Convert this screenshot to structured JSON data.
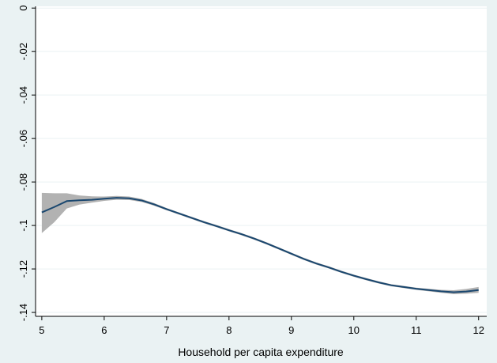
{
  "chart_data": {
    "type": "line",
    "title": "",
    "xlabel": "Household per capita expenditure",
    "ylabel": "",
    "xlim": [
      4.9,
      12.13
    ],
    "ylim": [
      -0.1418,
      0.0008
    ],
    "xticks": [
      5,
      6,
      7,
      8,
      9,
      10,
      11,
      12
    ],
    "yticks": [
      0,
      -0.02,
      -0.04,
      -0.06,
      -0.08,
      -0.1,
      -0.12,
      -0.14
    ],
    "ytick_labels": [
      "0",
      "-.02",
      "-.04",
      "-.06",
      "-.08",
      "-.1",
      "-.12",
      "-.14"
    ],
    "grid": true,
    "legend": "none",
    "colors": {
      "line": "#1a476f",
      "band": "#b2b2b2",
      "plot_bg": "#ffffff",
      "outer_bg": "#eaf2f3",
      "grid": "#eaf2f3"
    },
    "series": [
      {
        "x": [
          5.0,
          5.2,
          5.4,
          5.6,
          5.8,
          6.0,
          6.2,
          6.4,
          6.6,
          6.8,
          7.0,
          7.2,
          7.4,
          7.6,
          7.8,
          8.0,
          8.2,
          8.4,
          8.6,
          8.8,
          9.0,
          9.2,
          9.4,
          9.6,
          9.8,
          10.0,
          10.2,
          10.4,
          10.6,
          10.8,
          11.0,
          11.2,
          11.4,
          11.6,
          11.8,
          12.0
        ],
        "y": [
          -0.094,
          -0.0915,
          -0.0888,
          -0.0884,
          -0.0882,
          -0.0877,
          -0.0873,
          -0.0875,
          -0.0885,
          -0.0903,
          -0.0925,
          -0.0945,
          -0.0965,
          -0.0985,
          -0.1003,
          -0.1022,
          -0.104,
          -0.106,
          -0.1082,
          -0.1106,
          -0.113,
          -0.1154,
          -0.1175,
          -0.1193,
          -0.1213,
          -0.1231,
          -0.1247,
          -0.1262,
          -0.1275,
          -0.1283,
          -0.1291,
          -0.1297,
          -0.1303,
          -0.1307,
          -0.1304,
          -0.1297
        ],
        "lower": [
          -0.1035,
          -0.0985,
          -0.0922,
          -0.0904,
          -0.0895,
          -0.0887,
          -0.0882,
          -0.0883,
          -0.0892,
          -0.0909,
          -0.093,
          -0.095,
          -0.097,
          -0.099,
          -0.1008,
          -0.1027,
          -0.1045,
          -0.1065,
          -0.1087,
          -0.1111,
          -0.1135,
          -0.1159,
          -0.118,
          -0.1198,
          -0.1218,
          -0.1236,
          -0.1252,
          -0.1267,
          -0.128,
          -0.1288,
          -0.1296,
          -0.1303,
          -0.131,
          -0.1316,
          -0.1314,
          -0.131
        ],
        "upper": [
          -0.085,
          -0.0852,
          -0.0852,
          -0.0862,
          -0.0866,
          -0.0867,
          -0.0864,
          -0.0867,
          -0.0878,
          -0.0897,
          -0.092,
          -0.094,
          -0.096,
          -0.098,
          -0.0998,
          -0.1017,
          -0.1035,
          -0.1055,
          -0.1077,
          -0.1101,
          -0.1125,
          -0.1149,
          -0.117,
          -0.1188,
          -0.1208,
          -0.1226,
          -0.1242,
          -0.1257,
          -0.127,
          -0.1278,
          -0.1286,
          -0.1291,
          -0.1296,
          -0.1298,
          -0.1292,
          -0.1283
        ]
      }
    ]
  }
}
